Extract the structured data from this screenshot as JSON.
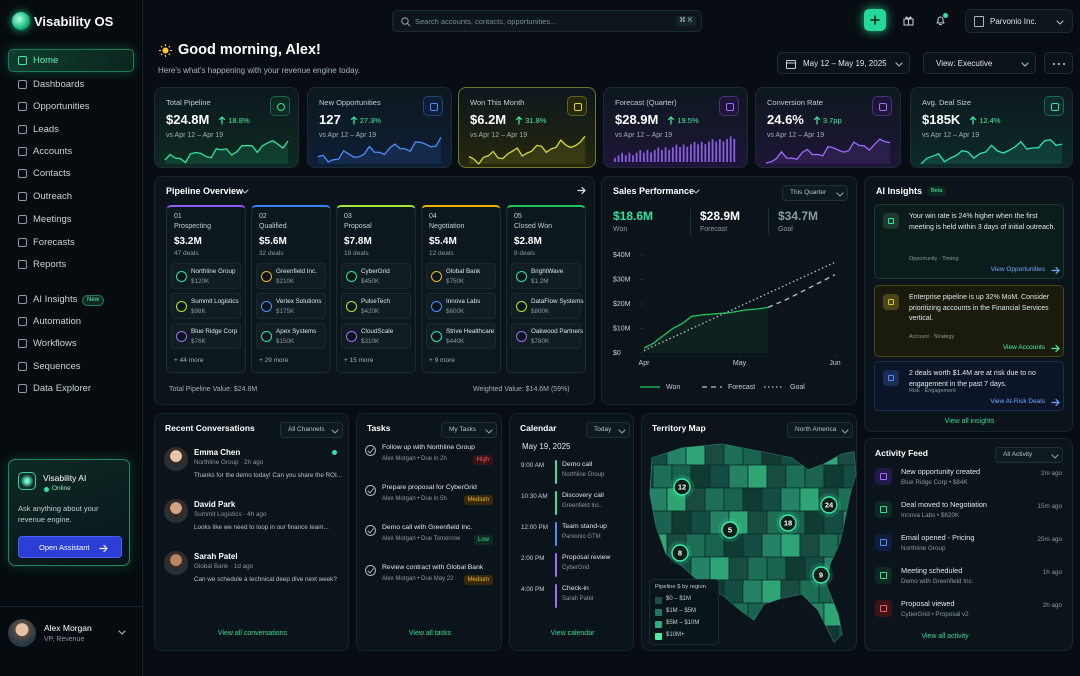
{
  "sidebar": {
    "brand": "Visability OS",
    "nav": [
      "Home",
      "Dashboards",
      "Opportunities",
      "Leads",
      "Accounts",
      "Contacts",
      "Outreach",
      "Meetings",
      "Forecasts",
      "Reports",
      "AI Insights",
      "Automation",
      "Workflows",
      "Sequences",
      "Data Explorer"
    ],
    "nav_badge": "New",
    "assistant": {
      "title": "Visability AI",
      "status": "Online",
      "text": "Ask anything about your revenue engine.",
      "button": "Open Assistant"
    },
    "user": {
      "name": "Alex Morgan",
      "role": "VP, Revenue"
    }
  },
  "topbar": {
    "search": "Search accounts, contacts, opportunities...",
    "shortcut": "⌘ K",
    "org": "Parvonio Inc."
  },
  "header": {
    "greeting": "Good morning, Alex!",
    "subtitle": "Here's what's happening with your revenue engine today.",
    "date_range": "May 12 – May 19, 2025",
    "view": "View: Executive"
  },
  "kpis": [
    {
      "label": "Total Pipeline",
      "value": "$24.8M",
      "change": "18.8%",
      "compare": "vs Apr 12 – Apr 19"
    },
    {
      "label": "New Opportunities",
      "value": "127",
      "change": "27.3%",
      "compare": "vs Apr 12 – Apr 19"
    },
    {
      "label": "Won This Month",
      "value": "$6.2M",
      "change": "31.8%",
      "compare": "vs Apr 12 – Apr 19"
    },
    {
      "label": "Forecast (Quarter)",
      "value": "$28.9M",
      "change": "19.5%",
      "compare": "vs Apr 12 – Apr 19"
    },
    {
      "label": "Conversion Rate",
      "value": "24.6%",
      "change": "3.7pp",
      "compare": "vs Apr 12 – Apr 19"
    },
    {
      "label": "Avg. Deal Size",
      "value": "$185K",
      "change": "12.4%",
      "compare": "vs Apr 12 – Apr 19"
    }
  ],
  "pipeline": {
    "title": "Pipeline Overview",
    "stages": [
      {
        "num": "01",
        "name": "Prospecting",
        "value": "$3.2M",
        "deals": "47 deals",
        "items": [
          {
            "name": "Northline Group",
            "value": "$120K"
          },
          {
            "name": "Summit Logistics",
            "value": "$98K"
          },
          {
            "name": "Blue Ridge Corp",
            "value": "$76K"
          }
        ],
        "more": "+ 44 more"
      },
      {
        "num": "02",
        "name": "Qualified",
        "value": "$5.6M",
        "deals": "32 deals",
        "items": [
          {
            "name": "Greenfield Inc.",
            "value": "$210K"
          },
          {
            "name": "Vertex Solutions",
            "value": "$175K"
          },
          {
            "name": "Apex Systems",
            "value": "$150K"
          }
        ],
        "more": "+ 29 more"
      },
      {
        "num": "03",
        "name": "Proposal",
        "value": "$7.8M",
        "deals": "18 deals",
        "items": [
          {
            "name": "CyberGrid",
            "value": "$450K"
          },
          {
            "name": "PulseTech",
            "value": "$420K"
          },
          {
            "name": "CloudScale",
            "value": "$310K"
          }
        ],
        "more": "+ 15 more"
      },
      {
        "num": "04",
        "name": "Negotiation",
        "value": "$5.4M",
        "deals": "12 deals",
        "items": [
          {
            "name": "Global Bank",
            "value": "$750K"
          },
          {
            "name": "Innova Labs",
            "value": "$600K"
          },
          {
            "name": "Strive Healthcare",
            "value": "$440K"
          }
        ],
        "more": "+ 9 more"
      },
      {
        "num": "05",
        "name": "Closed Won",
        "value": "$2.8M",
        "deals": "8 deals",
        "items": [
          {
            "name": "BrightWave",
            "value": "$1.2M"
          },
          {
            "name": "DataFlow Systems",
            "value": "$800K"
          },
          {
            "name": "Oakwood Partners",
            "value": "$780K"
          }
        ]
      }
    ],
    "total": "Total Pipeline Value: $24.8M",
    "weighted": "Weighted Value: $14.6M (59%)"
  },
  "sales_performance": {
    "title": "Sales Performance",
    "period": "This Quarter",
    "stats": [
      {
        "value": "$18.6M",
        "label": "Won"
      },
      {
        "value": "$28.9M",
        "label": "Forecast"
      },
      {
        "value": "$34.7M",
        "label": "Goal"
      }
    ],
    "chart": {
      "type": "line",
      "ylim": [
        0,
        40
      ],
      "yticks": [
        {
          "value": 0,
          "label": "$0"
        },
        {
          "value": 10,
          "label": "$10M"
        },
        {
          "value": 20,
          "label": "$20M"
        },
        {
          "value": 30,
          "label": "$30M"
        },
        {
          "value": 40,
          "label": "$40M"
        }
      ],
      "xlim": [
        0,
        2
      ],
      "xticks": [
        {
          "value": 0,
          "label": "Apr"
        },
        {
          "value": 1,
          "label": "May"
        },
        {
          "value": 2,
          "label": "Jun"
        }
      ],
      "series": [
        {
          "name": "Won",
          "color": "#22c55e",
          "dash": "none",
          "x": [
            0,
            0.1,
            0.2,
            0.3,
            0.4,
            0.5,
            0.6,
            0.75,
            0.9,
            1.05,
            1.2,
            1.3
          ],
          "values": [
            2,
            4,
            7,
            10,
            12,
            15,
            15.5,
            16,
            16.5,
            17.5,
            18,
            18.6
          ]
        },
        {
          "name": "Forecast",
          "color": "#b8c4c8",
          "dash": "5 4",
          "x": [
            1.3,
            1.5,
            1.7,
            1.85,
            2
          ],
          "values": [
            18.6,
            22,
            26,
            29,
            32
          ]
        },
        {
          "name": "Goal",
          "color": "#b8c4c8",
          "dash": "1.5 2.5",
          "x": [
            0,
            0.5,
            1,
            1.5,
            2
          ],
          "values": [
            1,
            10,
            19,
            28,
            37
          ]
        }
      ]
    }
  },
  "ai_insights": {
    "title": "AI Insights",
    "badge": "Beta",
    "items": [
      {
        "text": "Your win rate is 24% higher when the first meeting is held within 3 days of initial outreach.",
        "tags": "Opportunity · Timing",
        "link": "View Opportunities"
      },
      {
        "text": "Enterprise pipeline is up 32% MoM. Consider prioritizing accounts in the Financial Services vertical.",
        "tags": "Account · Strategy",
        "link": "View Accounts"
      },
      {
        "text": "2 deals worth $1.4M are at risk due to no engagement in the past 7 days.",
        "tags": "Risk · Engagement",
        "link": "View At-Risk Deals"
      }
    ],
    "footer": "View all insights"
  },
  "conversations": {
    "title": "Recent Conversations",
    "filter": "All Channels",
    "items": [
      {
        "name": "Emma Chen",
        "meta": "Northline Group · 2h ago",
        "message": "Thanks for the demo today! Can you share the ROI..."
      },
      {
        "name": "David Park",
        "meta": "Summit Logistics · 4h ago",
        "message": "Looks like we need to loop in our finance team..."
      },
      {
        "name": "Sarah Patel",
        "meta": "Global Bank · 1d ago",
        "message": "Can we schedule a technical deep dive next week?"
      }
    ],
    "footer": "View all conversations"
  },
  "tasks": {
    "title": "Tasks",
    "filter": "My Tasks",
    "items": [
      {
        "title": "Follow up with Northline Group",
        "meta": "Alex Morgan • Due in 2h",
        "priority": "High"
      },
      {
        "title": "Prepare proposal for CyberGrid",
        "meta": "Alex Morgan • Due in 5h",
        "priority": "Medium"
      },
      {
        "title": "Demo call with Greenfield Inc.",
        "meta": "Alex Morgan • Due Tomorrow",
        "priority": "Low"
      },
      {
        "title": "Review contract with Global Bank",
        "meta": "Alex Morgan • Due May 22",
        "priority": "Medium"
      }
    ],
    "footer": "View all tasks"
  },
  "calendar": {
    "title": "Calendar",
    "filter": "Today",
    "date": "May 19, 2025",
    "events": [
      {
        "time": "9:00 AM",
        "title": "Demo call",
        "subtitle": "Northline Group"
      },
      {
        "time": "10:30 AM",
        "title": "Discovery call",
        "subtitle": "Greenfield Inc."
      },
      {
        "time": "12:00 PM",
        "title": "Team stand-up",
        "subtitle": "Parvonio GTM"
      },
      {
        "time": "2:00 PM",
        "title": "Proposal review",
        "subtitle": "CyberGrid"
      },
      {
        "time": "4:00 PM",
        "title": "Check-in",
        "subtitle": "Sarah Patel"
      }
    ],
    "footer": "View calendar"
  },
  "map": {
    "title": "Territory Map",
    "filter": "North America",
    "markers": [
      12,
      5,
      18,
      24,
      8,
      9
    ],
    "legend_title": "Pipeline $ by region",
    "legend": [
      {
        "label": "$0 – $1M",
        "color": "#1d4f45"
      },
      {
        "label": "$1M – $5M",
        "color": "#1f7a5c"
      },
      {
        "label": "$5M – $10M",
        "color": "#2fb07e"
      },
      {
        "label": "$10M+",
        "color": "#4ef0a8"
      }
    ]
  },
  "activity": {
    "title": "Activity Feed",
    "filter": "All Activity",
    "items": [
      {
        "title": "New opportunity created",
        "subtitle": "Blue Ridge Corp • $84K",
        "time": "2m ago"
      },
      {
        "title": "Deal moved to Negotiation",
        "subtitle": "Innova Labs • $620K",
        "time": "15m ago"
      },
      {
        "title": "Email opened - Pricing",
        "subtitle": "Northline Group",
        "time": "25m ago"
      },
      {
        "title": "Meeting scheduled",
        "subtitle": "Demo with Greenfield Inc.",
        "time": "1h ago"
      },
      {
        "title": "Proposal viewed",
        "subtitle": "CyberGrid • Proposal v2",
        "time": "2h ago"
      }
    ],
    "footer": "View all activity"
  }
}
